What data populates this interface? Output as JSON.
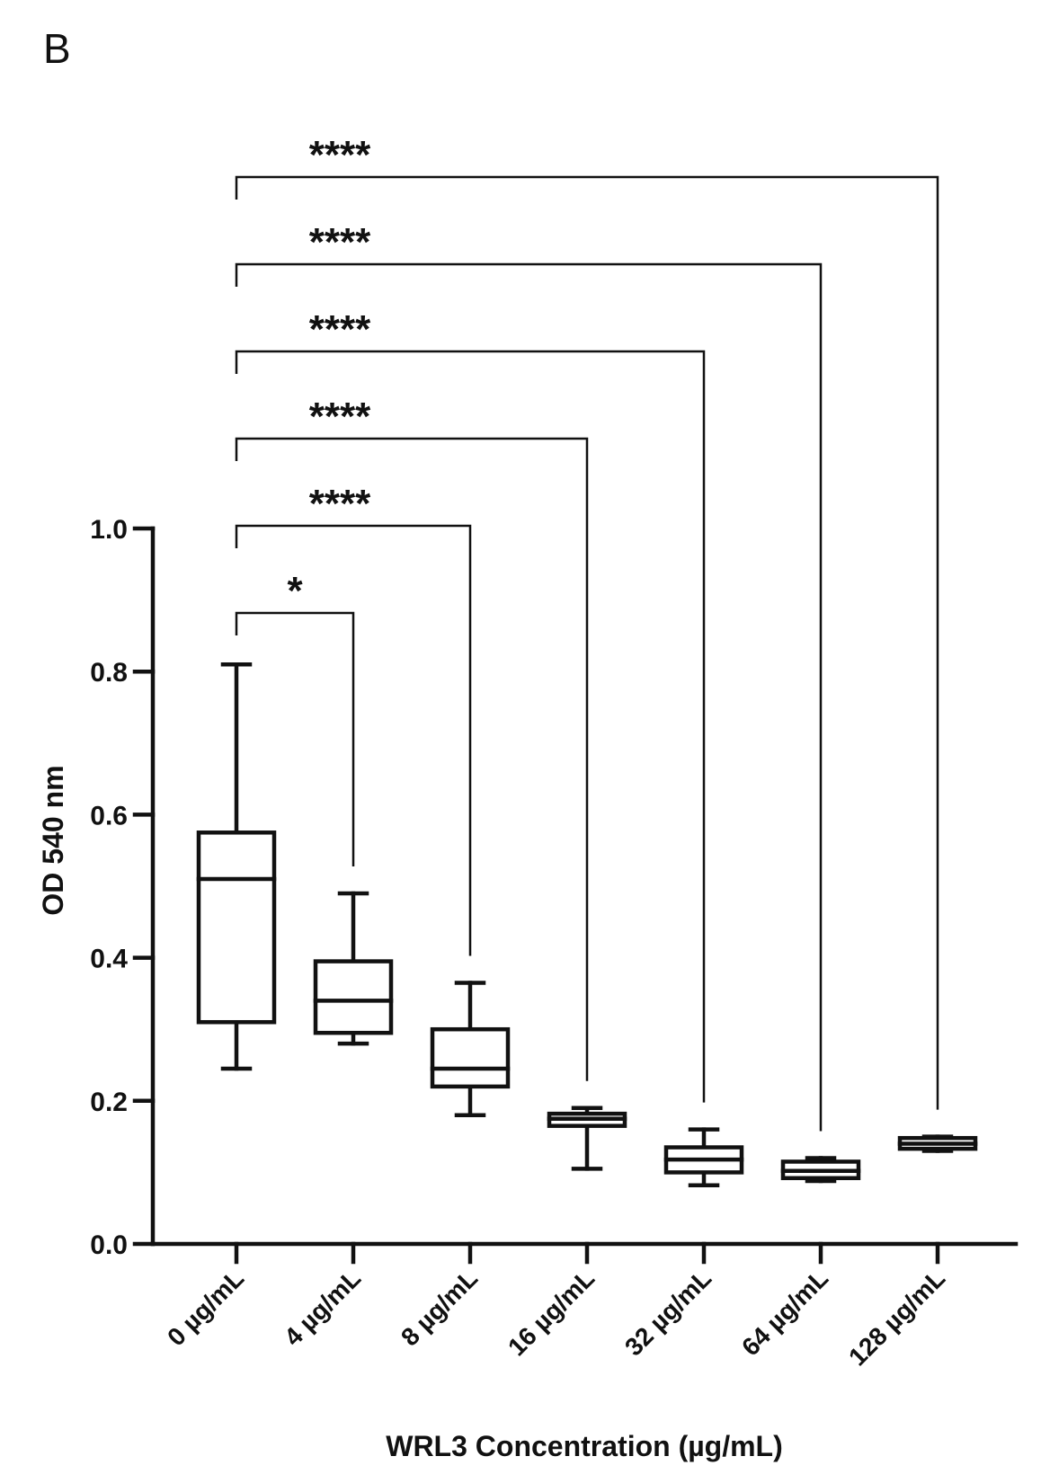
{
  "panel_label": "B",
  "chart_data": {
    "type": "box",
    "xlabel": "WRL3 Concentration (µg/mL)",
    "ylabel": "OD 540 nm",
    "ylim": [
      0.0,
      1.0
    ],
    "yticks": [
      0.0,
      0.2,
      0.4,
      0.6,
      0.8,
      1.0
    ],
    "ytick_labels": [
      "0.0",
      "0.2",
      "0.4",
      "0.6",
      "0.8",
      "1.0"
    ],
    "grid": false,
    "categories": [
      "0 µg/mL",
      "4 µg/mL",
      "8 µg/mL",
      "16 µg/mL",
      "32 µg/mL",
      "64 µg/mL",
      "128 µg/mL"
    ],
    "boxes": [
      {
        "min": 0.245,
        "q1": 0.31,
        "median": 0.51,
        "q3": 0.575,
        "max": 0.81
      },
      {
        "min": 0.28,
        "q1": 0.295,
        "median": 0.34,
        "q3": 0.395,
        "max": 0.49
      },
      {
        "min": 0.18,
        "q1": 0.22,
        "median": 0.245,
        "q3": 0.3,
        "max": 0.365
      },
      {
        "min": 0.105,
        "q1": 0.165,
        "median": 0.175,
        "q3": 0.182,
        "max": 0.19
      },
      {
        "min": 0.082,
        "q1": 0.1,
        "median": 0.118,
        "q3": 0.135,
        "max": 0.16
      },
      {
        "min": 0.088,
        "q1": 0.092,
        "median": 0.102,
        "q3": 0.115,
        "max": 0.12
      },
      {
        "min": 0.13,
        "q1": 0.133,
        "median": 0.14,
        "q3": 0.148,
        "max": 0.15
      }
    ],
    "significance": [
      {
        "from": 0,
        "to": 1,
        "label": "*"
      },
      {
        "from": 0,
        "to": 2,
        "label": "****"
      },
      {
        "from": 0,
        "to": 3,
        "label": "****"
      },
      {
        "from": 0,
        "to": 4,
        "label": "****"
      },
      {
        "from": 0,
        "to": 5,
        "label": "****"
      },
      {
        "from": 0,
        "to": 6,
        "label": "****"
      }
    ]
  }
}
